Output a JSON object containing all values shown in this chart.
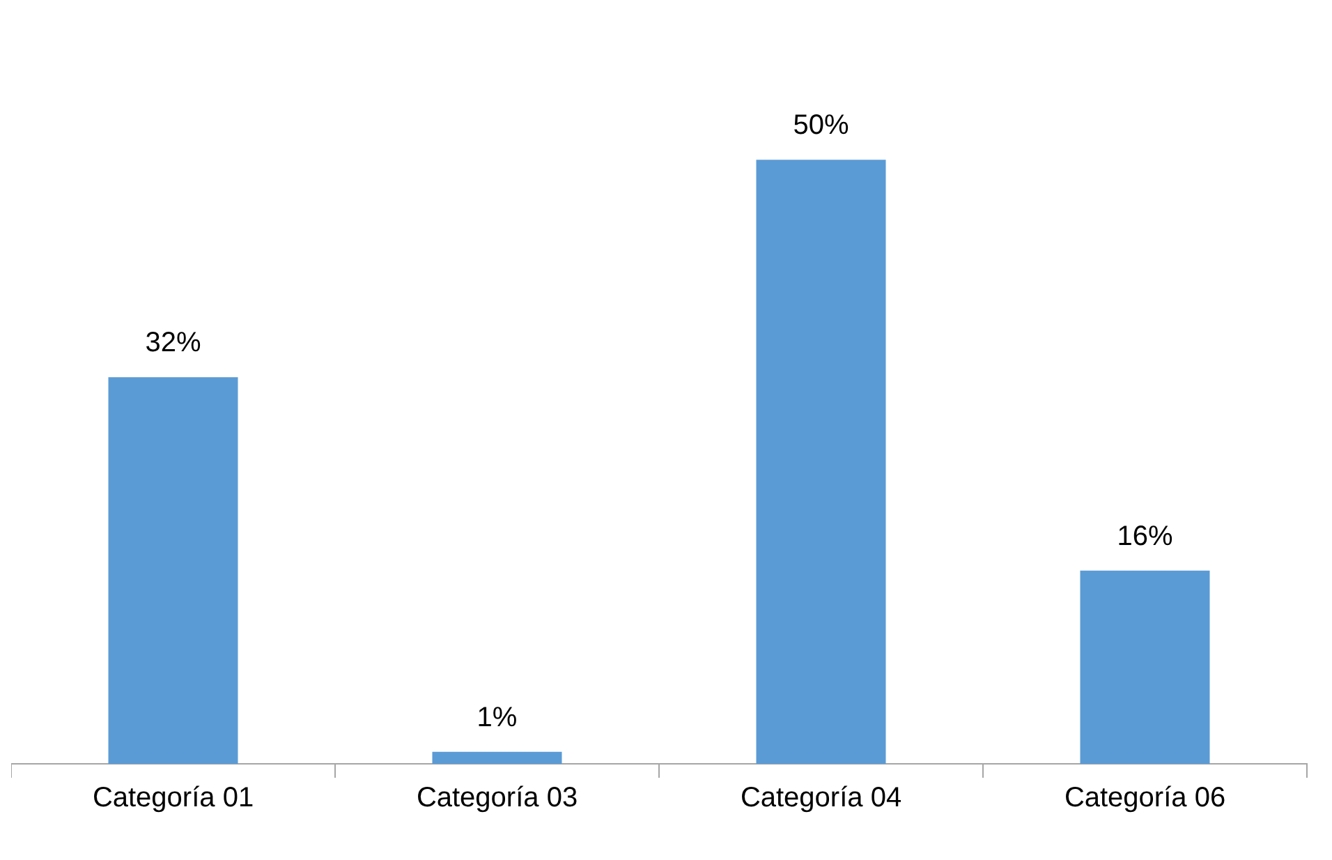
{
  "chart_data": {
    "type": "bar",
    "categories": [
      "Categoría 01",
      "Categoría 03",
      "Categoría 04",
      "Categoría 06"
    ],
    "values": [
      32,
      1,
      50,
      16
    ],
    "value_labels": [
      "32%",
      "1%",
      "50%",
      "16%"
    ],
    "color": "#5b9bd5",
    "grid": false,
    "legend": false
  }
}
